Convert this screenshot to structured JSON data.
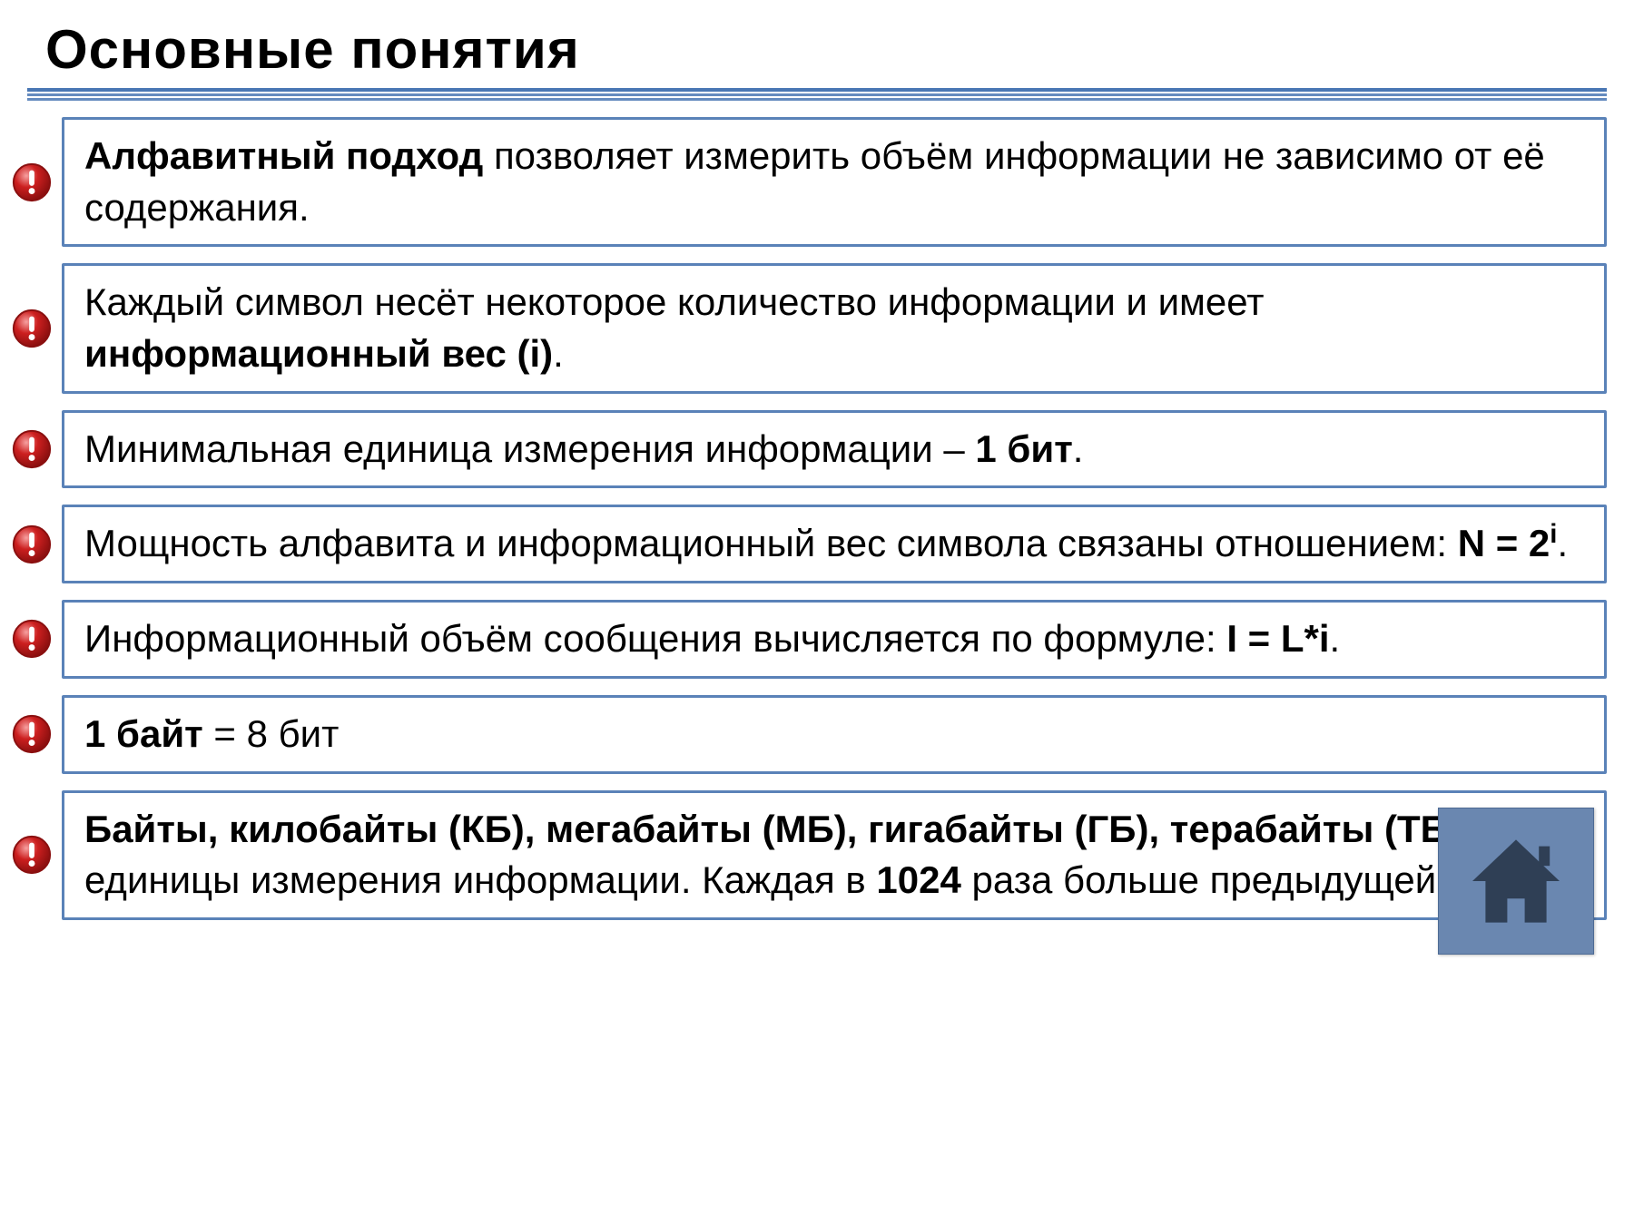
{
  "title": "Основные понятия",
  "colors": {
    "rule": "#4a77b4",
    "box_border": "#5a82b8",
    "home_bg": "#6a87b0",
    "home_fg": "#2f3f55",
    "marker_red": "#cc1f1f",
    "marker_red_dark": "#8a0f0f",
    "marker_hilite": "#f6a0a0"
  },
  "items": [
    {
      "segments": [
        {
          "t": "Алфавитный подход ",
          "b": true
        },
        {
          "t": "позволяет измерить объём информации не зависимо от её содержания."
        }
      ]
    },
    {
      "segments": [
        {
          "t": "Каждый символ несёт некоторое количество информации и имеет "
        },
        {
          "t": "информационный вес (i)",
          "b": true
        },
        {
          "t": "."
        }
      ]
    },
    {
      "segments": [
        {
          "t": "Минимальная единица измерения информации – "
        },
        {
          "t": "1 бит",
          "b": true
        },
        {
          "t": "."
        }
      ]
    },
    {
      "segments": [
        {
          "t": "Мощность алфавита и информационный вес символа связаны отношением: "
        },
        {
          "t": "N = 2",
          "b": true
        },
        {
          "t": "i",
          "b": true,
          "sup": true
        },
        {
          "t": "."
        }
      ]
    },
    {
      "segments": [
        {
          "t": "Информационный объём сообщения вычисляется по формуле: "
        },
        {
          "t": "I = L*i",
          "b": true
        },
        {
          "t": "."
        }
      ]
    },
    {
      "segments": [
        {
          "t": "1 байт",
          "b": true
        },
        {
          "t": " = 8 бит"
        }
      ]
    },
    {
      "segments": [
        {
          "t": "Байты, килобайты (КБ), мегабайты (МБ), гигабайты (ГБ), терабайты (ТБ)",
          "b": true
        },
        {
          "t": " – единицы измерения информации. Каждая в "
        },
        {
          "t": "1024",
          "b": true
        },
        {
          "t": " раза больше предыдущей."
        }
      ]
    }
  ]
}
